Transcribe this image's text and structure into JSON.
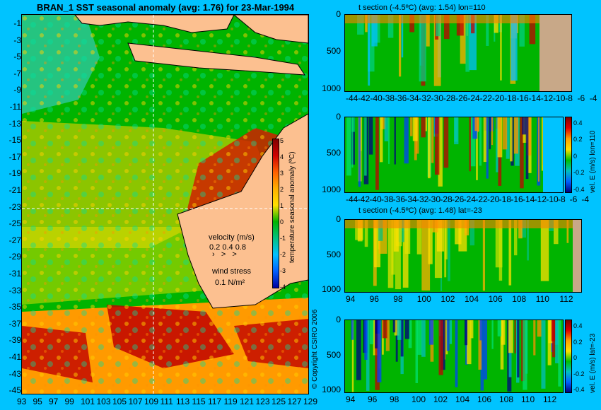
{
  "map": {
    "title": "BRAN_1  SST seasonal anomaly (avg: 1.76) for 23-Mar-1994",
    "y_ticks": [
      "-1",
      "-3",
      "-5",
      "-7",
      "-9",
      "-11",
      "-13",
      "-15",
      "-17",
      "-19",
      "-21",
      "-23",
      "-25",
      "-27",
      "-29",
      "-31",
      "-33",
      "-35",
      "-37",
      "-39",
      "-41",
      "-43",
      "-45"
    ],
    "x_ticks": [
      "93",
      "95",
      "97",
      "99",
      "101",
      "103",
      "105",
      "107",
      "109",
      "111",
      "113",
      "115",
      "117",
      "119",
      "121",
      "123",
      "125",
      "127",
      "129"
    ],
    "colorbar": {
      "label": "temperature seasonal anomaly (ºC)",
      "ticks": [
        "5",
        "4",
        "3",
        "2",
        "1",
        "0",
        "-1",
        "-2",
        "-3",
        "-4"
      ]
    },
    "velocity_legend": {
      "title": "velocity (m/s)",
      "values": "0.2 0.4 0.8"
    },
    "wind_legend": {
      "title": "wind stress",
      "value": "0.1 N/m²"
    },
    "copyright": "© Copyright CSIRO 2006",
    "colors": {
      "land": "#fcc090",
      "ocean_base": "#00b400",
      "positive": "#ffb000",
      "strong_positive": "#c00000",
      "negative": "#00c0ff"
    }
  },
  "panels": [
    {
      "title": "t section (-4.5ºC) (avg: 1.54) lon=110",
      "y_ticks": [
        "0",
        "500",
        "1000"
      ],
      "x_ticks": [
        "-44",
        "-42",
        "-40",
        "-38",
        "-36",
        "-34",
        "-32",
        "-30",
        "-28",
        "-26",
        "-24",
        "-22",
        "-20",
        "-18",
        "-16",
        "-14",
        "-12",
        "-10",
        "-8",
        "-6",
        "-4"
      ],
      "colorbar": null
    },
    {
      "title": "",
      "y_ticks": [
        "0",
        "500",
        "1000"
      ],
      "x_ticks": [
        "-44",
        "-42",
        "-40",
        "-38",
        "-36",
        "-34",
        "-32",
        "-30",
        "-28",
        "-26",
        "-24",
        "-22",
        "-20",
        "-18",
        "-16",
        "-14",
        "-12",
        "-10",
        "-8",
        "-6",
        "-4"
      ],
      "colorbar": {
        "label": "vel. E (m/s) lon=110",
        "ticks": [
          "0.4",
          "0.2",
          "0",
          "-0.2",
          "-0.4"
        ]
      }
    },
    {
      "title": "t section (-4.5ºC) (avg: 1.48) lat=-23",
      "y_ticks": [
        "0",
        "500",
        "1000"
      ],
      "x_ticks": [
        "94",
        "96",
        "98",
        "100",
        "102",
        "104",
        "106",
        "108",
        "110",
        "112"
      ],
      "colorbar": null
    },
    {
      "title": "",
      "y_ticks": [
        "0",
        "500",
        "1000"
      ],
      "x_ticks": [
        "94",
        "96",
        "98",
        "100",
        "102",
        "104",
        "106",
        "108",
        "110",
        "112"
      ],
      "colorbar": {
        "label": "vel. E (m/s) lat=-23",
        "ticks": [
          "0.4",
          "0.2",
          "0",
          "-0.2",
          "-0.4"
        ]
      }
    }
  ],
  "chart_data": [
    {
      "type": "heatmap",
      "title": "BRAN_1  SST seasonal anomaly (avg: 1.76) for 23-Mar-1994",
      "x_range": [
        93,
        130
      ],
      "y_range": [
        -45,
        0
      ],
      "color_range": [
        -4,
        5
      ],
      "colorbar_label": "temperature seasonal anomaly (ºC)",
      "average": 1.76,
      "date": "23-Mar-1994"
    },
    {
      "type": "heatmap",
      "title": "t section (-4.5ºC) (avg: 1.54) lon=110",
      "x_range": [
        -45,
        -3
      ],
      "y_range": [
        1050,
        0
      ],
      "average": 1.54
    },
    {
      "type": "heatmap",
      "colorbar_label": "vel. E (m/s) lon=110",
      "x_range": [
        -45,
        -3
      ],
      "y_range": [
        1050,
        0
      ],
      "color_range": [
        -0.4,
        0.4
      ]
    },
    {
      "type": "heatmap",
      "title": "t section (-4.5ºC) (avg: 1.48) lat=-23",
      "x_range": [
        93,
        114
      ],
      "y_range": [
        1050,
        0
      ],
      "average": 1.48
    },
    {
      "type": "heatmap",
      "colorbar_label": "vel. E (m/s) lat=-23",
      "x_range": [
        93,
        114
      ],
      "y_range": [
        1050,
        0
      ],
      "color_range": [
        -0.4,
        0.4
      ]
    }
  ]
}
